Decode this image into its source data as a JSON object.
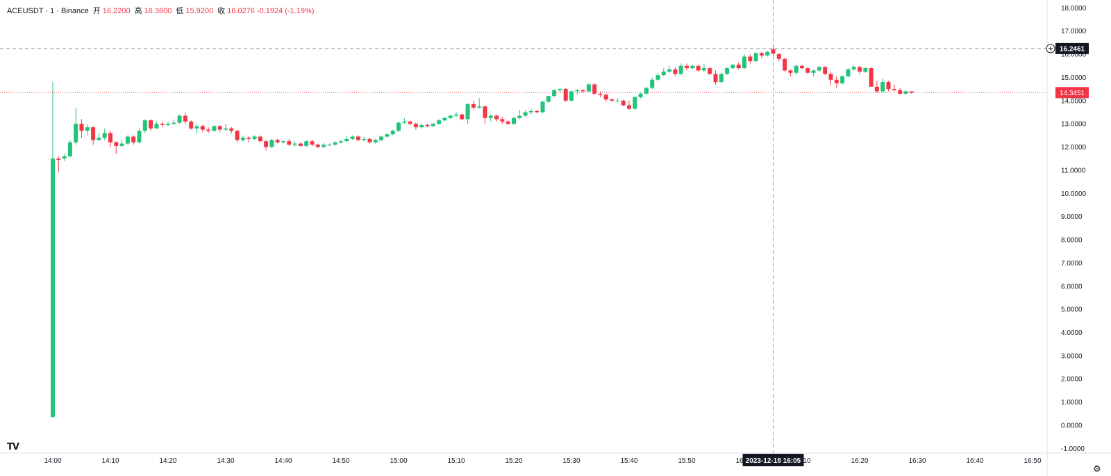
{
  "legend": {
    "symbol": "ACEUSDT · 1 · Binance",
    "open_label": "开",
    "open": "16.2200",
    "high_label": "高",
    "high": "16.3600",
    "low_label": "低",
    "low": "15.9200",
    "close_label": "收",
    "close": "16.0276",
    "change": "-0.1924 (-1.19%)"
  },
  "chart_data": {
    "type": "candlestick",
    "colors": {
      "up": "#22c37b",
      "down": "#f23645"
    },
    "y_axis": {
      "range": [
        -1.2,
        18.4
      ],
      "ticks": [
        "18.0000",
        "17.0000",
        "16.0000",
        "15.0000",
        "14.0000",
        "13.0000",
        "12.0000",
        "11.0000",
        "10.0000",
        "9.0000",
        "8.0000",
        "7.0000",
        "6.0000",
        "5.0000",
        "4.0000",
        "3.0000",
        "2.0000",
        "1.0000",
        "0.0000",
        "-1.0000"
      ]
    },
    "x_axis": {
      "ticks": [
        "14:00",
        "14:10",
        "14:20",
        "14:30",
        "14:40",
        "14:50",
        "15:00",
        "15:10",
        "15:20",
        "15:30",
        "15:40",
        "15:50",
        "16:00",
        "16:10",
        "16:20",
        "16:30",
        "16:40",
        "16:50"
      ]
    },
    "crosshair": {
      "price": "16.2461",
      "time": "2023-12-18   16:05"
    },
    "last_price": "14.3451",
    "candles": [
      [
        "14:00",
        0.35,
        14.8,
        0.35,
        11.5
      ],
      [
        "14:01",
        11.5,
        11.6,
        10.9,
        11.45
      ],
      [
        "14:02",
        11.5,
        11.7,
        11.4,
        11.6
      ],
      [
        "14:03",
        11.6,
        12.3,
        11.55,
        12.2
      ],
      [
        "14:04",
        12.2,
        13.7,
        12.1,
        13.0
      ],
      [
        "14:05",
        13.0,
        13.2,
        12.4,
        12.7
      ],
      [
        "14:06",
        12.7,
        13.0,
        12.5,
        12.85
      ],
      [
        "14:07",
        12.85,
        12.9,
        12.1,
        12.3
      ],
      [
        "14:08",
        12.3,
        12.6,
        12.25,
        12.4
      ],
      [
        "14:09",
        12.4,
        12.8,
        12.3,
        12.6
      ],
      [
        "14:10",
        12.6,
        12.7,
        12.0,
        12.2
      ],
      [
        "14:11",
        12.2,
        12.25,
        11.7,
        12.05
      ],
      [
        "14:12",
        12.05,
        12.3,
        12.0,
        12.15
      ],
      [
        "14:13",
        12.15,
        12.5,
        12.1,
        12.45
      ],
      [
        "14:14",
        12.45,
        12.5,
        12.1,
        12.2
      ],
      [
        "14:15",
        12.2,
        12.8,
        12.15,
        12.7
      ],
      [
        "14:16",
        12.7,
        13.2,
        12.6,
        13.15
      ],
      [
        "14:17",
        13.15,
        13.2,
        12.7,
        12.8
      ],
      [
        "14:18",
        12.8,
        13.1,
        12.8,
        13.0
      ],
      [
        "14:19",
        13.0,
        13.1,
        12.85,
        12.95
      ],
      [
        "14:20",
        12.95,
        13.1,
        12.9,
        13.0
      ],
      [
        "14:21",
        13.0,
        13.2,
        12.95,
        13.05
      ],
      [
        "14:22",
        13.05,
        13.4,
        13.0,
        13.35
      ],
      [
        "14:23",
        13.35,
        13.5,
        13.0,
        13.1
      ],
      [
        "14:24",
        13.1,
        13.15,
        12.75,
        12.8
      ],
      [
        "14:25",
        12.8,
        13.0,
        12.6,
        12.9
      ],
      [
        "14:26",
        12.9,
        12.95,
        12.65,
        12.75
      ],
      [
        "14:27",
        12.75,
        12.85,
        12.6,
        12.7
      ],
      [
        "14:28",
        12.7,
        12.95,
        12.65,
        12.9
      ],
      [
        "14:29",
        12.9,
        12.95,
        12.65,
        12.75
      ],
      [
        "14:30",
        12.75,
        13.0,
        12.7,
        12.8
      ],
      [
        "14:31",
        12.8,
        12.85,
        12.6,
        12.7
      ],
      [
        "14:32",
        12.7,
        12.75,
        12.2,
        12.3
      ],
      [
        "14:33",
        12.3,
        12.5,
        12.25,
        12.4
      ],
      [
        "14:34",
        12.4,
        12.45,
        12.2,
        12.35
      ],
      [
        "14:35",
        12.35,
        12.5,
        12.3,
        12.45
      ],
      [
        "14:36",
        12.45,
        12.5,
        12.2,
        12.25
      ],
      [
        "14:37",
        12.25,
        12.3,
        11.85,
        12.0
      ],
      [
        "14:38",
        12.0,
        12.35,
        11.95,
        12.3
      ],
      [
        "14:39",
        12.3,
        12.35,
        12.15,
        12.2
      ],
      [
        "14:40",
        12.2,
        12.3,
        12.15,
        12.25
      ],
      [
        "14:41",
        12.25,
        12.35,
        12.05,
        12.1
      ],
      [
        "14:42",
        12.1,
        12.25,
        12.0,
        12.15
      ],
      [
        "14:43",
        12.15,
        12.2,
        12.0,
        12.05
      ],
      [
        "14:44",
        12.05,
        12.3,
        12.0,
        12.25
      ],
      [
        "14:45",
        12.25,
        12.3,
        12.05,
        12.1
      ],
      [
        "14:46",
        12.1,
        12.15,
        11.95,
        12.0
      ],
      [
        "14:47",
        12.0,
        12.2,
        11.95,
        12.1
      ],
      [
        "14:48",
        12.1,
        12.15,
        12.05,
        12.1
      ],
      [
        "14:49",
        12.1,
        12.25,
        12.05,
        12.2
      ],
      [
        "14:50",
        12.2,
        12.3,
        12.15,
        12.25
      ],
      [
        "14:51",
        12.25,
        12.5,
        12.2,
        12.35
      ],
      [
        "14:52",
        12.35,
        12.5,
        12.3,
        12.45
      ],
      [
        "14:53",
        12.45,
        12.5,
        12.25,
        12.3
      ],
      [
        "14:54",
        12.3,
        12.45,
        12.25,
        12.35
      ],
      [
        "14:55",
        12.35,
        12.4,
        12.15,
        12.2
      ],
      [
        "14:56",
        12.2,
        12.35,
        12.15,
        12.3
      ],
      [
        "14:57",
        12.3,
        12.5,
        12.25,
        12.45
      ],
      [
        "14:58",
        12.45,
        12.6,
        12.4,
        12.55
      ],
      [
        "14:59",
        12.55,
        12.75,
        12.5,
        12.7
      ],
      [
        "15:00",
        12.7,
        13.1,
        12.65,
        13.05
      ],
      [
        "15:01",
        13.05,
        13.25,
        13.0,
        13.1
      ],
      [
        "15:02",
        13.1,
        13.15,
        12.95,
        13.0
      ],
      [
        "15:03",
        13.0,
        13.05,
        12.75,
        12.85
      ],
      [
        "15:04",
        12.85,
        13.0,
        12.8,
        12.95
      ],
      [
        "15:05",
        12.95,
        13.0,
        12.85,
        12.9
      ],
      [
        "15:06",
        12.9,
        13.05,
        12.85,
        13.0
      ],
      [
        "15:07",
        13.0,
        13.2,
        12.95,
        13.15
      ],
      [
        "15:08",
        13.15,
        13.3,
        13.1,
        13.25
      ],
      [
        "15:09",
        13.25,
        13.4,
        13.2,
        13.35
      ],
      [
        "15:10",
        13.35,
        13.5,
        13.3,
        13.4
      ],
      [
        "15:11",
        13.4,
        13.45,
        13.15,
        13.2
      ],
      [
        "15:12",
        13.2,
        13.9,
        13.0,
        13.85
      ],
      [
        "15:13",
        13.85,
        14.0,
        13.6,
        13.7
      ],
      [
        "15:14",
        13.7,
        14.1,
        13.65,
        13.75
      ],
      [
        "15:15",
        13.75,
        13.8,
        13.0,
        13.25
      ],
      [
        "15:16",
        13.25,
        13.4,
        13.1,
        13.35
      ],
      [
        "15:17",
        13.35,
        13.4,
        13.1,
        13.2
      ],
      [
        "15:18",
        13.2,
        13.3,
        13.0,
        13.1
      ],
      [
        "15:19",
        13.1,
        13.15,
        12.95,
        13.0
      ],
      [
        "15:20",
        13.0,
        13.3,
        12.95,
        13.25
      ],
      [
        "15:21",
        13.25,
        13.6,
        13.2,
        13.35
      ],
      [
        "15:22",
        13.35,
        13.6,
        13.3,
        13.5
      ],
      [
        "15:23",
        13.5,
        13.65,
        13.4,
        13.55
      ],
      [
        "15:24",
        13.55,
        13.6,
        13.45,
        13.5
      ],
      [
        "15:25",
        13.5,
        14.0,
        13.45,
        13.95
      ],
      [
        "15:26",
        13.95,
        14.2,
        13.9,
        14.2
      ],
      [
        "15:27",
        14.2,
        14.5,
        14.15,
        14.45
      ],
      [
        "15:28",
        14.45,
        14.55,
        14.35,
        14.5
      ],
      [
        "15:29",
        14.5,
        14.55,
        13.95,
        14.0
      ],
      [
        "15:30",
        14.0,
        14.45,
        13.95,
        14.4
      ],
      [
        "15:31",
        14.4,
        14.5,
        14.25,
        14.45
      ],
      [
        "15:32",
        14.45,
        14.5,
        14.35,
        14.4
      ],
      [
        "15:33",
        14.4,
        14.75,
        14.35,
        14.7
      ],
      [
        "15:34",
        14.7,
        14.75,
        14.25,
        14.3
      ],
      [
        "15:35",
        14.3,
        14.4,
        14.15,
        14.25
      ],
      [
        "15:36",
        14.25,
        14.3,
        13.95,
        14.05
      ],
      [
        "15:37",
        14.05,
        14.1,
        13.95,
        14.0
      ],
      [
        "15:38",
        14.0,
        14.1,
        13.95,
        14.0
      ],
      [
        "15:39",
        14.0,
        14.05,
        13.75,
        13.8
      ],
      [
        "15:40",
        13.8,
        14.0,
        13.6,
        13.65
      ],
      [
        "15:41",
        13.65,
        14.2,
        13.6,
        14.15
      ],
      [
        "15:42",
        14.15,
        14.35,
        14.1,
        14.3
      ],
      [
        "15:43",
        14.3,
        14.6,
        14.25,
        14.55
      ],
      [
        "15:44",
        14.55,
        15.0,
        14.5,
        14.9
      ],
      [
        "15:45",
        14.9,
        15.2,
        14.85,
        15.1
      ],
      [
        "15:46",
        15.1,
        15.4,
        15.05,
        15.25
      ],
      [
        "15:47",
        15.25,
        15.5,
        15.2,
        15.35
      ],
      [
        "15:48",
        15.35,
        15.45,
        15.05,
        15.15
      ],
      [
        "15:49",
        15.15,
        15.6,
        15.1,
        15.5
      ],
      [
        "15:50",
        15.5,
        15.6,
        15.3,
        15.4
      ],
      [
        "15:51",
        15.4,
        15.55,
        15.35,
        15.5
      ],
      [
        "15:52",
        15.5,
        15.55,
        15.25,
        15.3
      ],
      [
        "15:53",
        15.3,
        15.6,
        15.25,
        15.4
      ],
      [
        "15:54",
        15.4,
        15.45,
        15.1,
        15.15
      ],
      [
        "15:55",
        15.15,
        15.3,
        14.7,
        14.8
      ],
      [
        "15:56",
        14.8,
        15.2,
        14.75,
        15.15
      ],
      [
        "15:57",
        15.15,
        15.45,
        15.1,
        15.4
      ],
      [
        "15:58",
        15.4,
        15.6,
        15.35,
        15.55
      ],
      [
        "15:59",
        15.55,
        15.65,
        15.35,
        15.4
      ],
      [
        "16:00",
        15.4,
        16.0,
        15.35,
        15.9
      ],
      [
        "16:01",
        15.9,
        16.0,
        15.6,
        15.7
      ],
      [
        "16:02",
        15.7,
        16.1,
        15.65,
        16.05
      ],
      [
        "16:03",
        16.05,
        16.1,
        15.85,
        15.95
      ],
      [
        "16:04",
        15.95,
        16.15,
        15.9,
        16.1
      ],
      [
        "16:05",
        16.22,
        16.36,
        15.92,
        16.0276
      ],
      [
        "16:06",
        16.0,
        16.05,
        15.7,
        15.8
      ],
      [
        "16:07",
        15.8,
        15.85,
        15.25,
        15.3
      ],
      [
        "16:08",
        15.3,
        15.35,
        15.05,
        15.2
      ],
      [
        "16:09",
        15.2,
        15.55,
        15.15,
        15.5
      ],
      [
        "16:10",
        15.5,
        15.55,
        15.35,
        15.4
      ],
      [
        "16:11",
        15.4,
        15.45,
        15.15,
        15.2
      ],
      [
        "16:12",
        15.2,
        15.35,
        15.05,
        15.3
      ],
      [
        "16:13",
        15.3,
        15.5,
        15.25,
        15.45
      ],
      [
        "16:14",
        15.45,
        15.5,
        15.1,
        15.15
      ],
      [
        "16:15",
        15.15,
        15.25,
        14.65,
        14.9
      ],
      [
        "16:16",
        14.9,
        15.05,
        14.55,
        14.75
      ],
      [
        "16:17",
        14.75,
        15.1,
        14.7,
        15.05
      ],
      [
        "16:18",
        15.05,
        15.4,
        15.0,
        15.35
      ],
      [
        "16:19",
        15.35,
        15.55,
        15.3,
        15.45
      ],
      [
        "16:20",
        15.45,
        15.5,
        15.15,
        15.25
      ],
      [
        "16:21",
        15.25,
        15.45,
        15.2,
        15.4
      ],
      [
        "16:22",
        15.4,
        15.45,
        14.6,
        14.6
      ],
      [
        "16:23",
        14.6,
        14.85,
        14.35,
        14.4
      ],
      [
        "16:24",
        14.4,
        14.95,
        14.35,
        14.8
      ],
      [
        "16:25",
        14.8,
        14.85,
        14.4,
        14.5
      ],
      [
        "16:26",
        14.5,
        14.7,
        14.4,
        14.45
      ],
      [
        "16:27",
        14.45,
        14.55,
        14.25,
        14.3
      ],
      [
        "16:28",
        14.3,
        14.45,
        14.25,
        14.4
      ],
      [
        "16:29",
        14.4,
        14.4,
        14.3,
        14.3451
      ]
    ]
  }
}
